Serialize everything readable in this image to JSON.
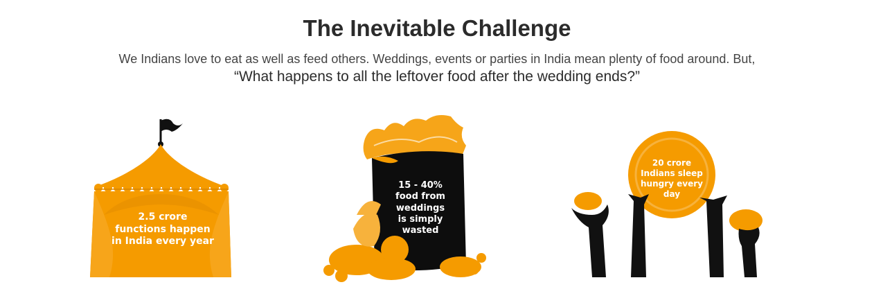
{
  "section": {
    "title": "The Inevitable Challenge",
    "intro": "We Indians love to eat as well as feed others. Weddings, events or parties in India mean plenty of food around. But,",
    "question": "“What happens to all the leftover food after the wedding ends?”"
  },
  "stats": [
    {
      "icon": "tent-icon",
      "lines": [
        "2.5 crore",
        "functions happen",
        "in India every year"
      ]
    },
    {
      "icon": "food-waste-bin-icon",
      "lines": [
        "15 - 40%",
        "food from",
        "weddings",
        "is simply",
        "wasted"
      ]
    },
    {
      "icon": "hungry-hands-icon",
      "lines": [
        "20 crore",
        "Indians sleep",
        "hungry every",
        "day"
      ]
    }
  ],
  "colors": {
    "orange": "#F59B00",
    "light_orange": "#F7B23C",
    "black": "#111111"
  }
}
